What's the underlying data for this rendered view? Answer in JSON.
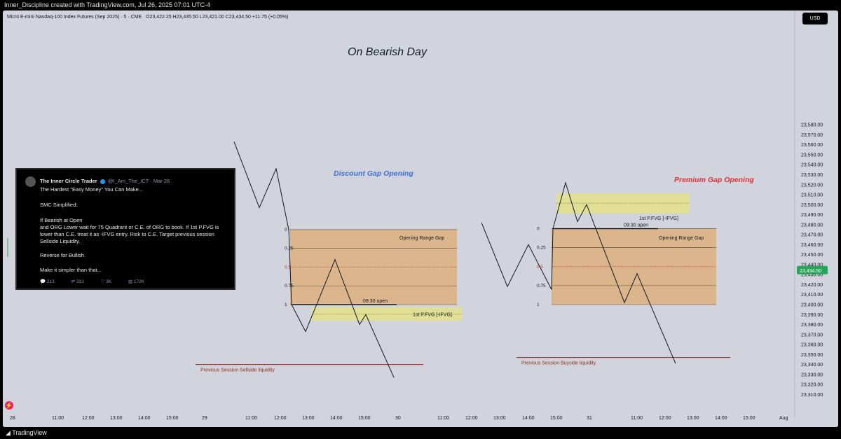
{
  "topbar": {
    "caption": "Inner_Discipline created with TradingView.com, Jul 26, 2025 07:01 UTC-4"
  },
  "symbol": {
    "name": "Micro E-mini Nasdaq-100 Index Futures (Sep 2025) · 5 · CME",
    "ohlc": "O23,422.25  H23,435.50  L23,421.00  C23,434.50  +11.75 (+0.05%)"
  },
  "currency_button": "USD",
  "branding": "TradingView",
  "colors": {
    "background": "#d1d4dc",
    "gap_box": "#e0a969",
    "pfvg_box": "#e4e08a",
    "liquidity_line": "#8b2e1f",
    "discount_title": "#3d6fd9",
    "premium_title": "#e0303a",
    "price_badge": "#26a65b"
  },
  "tweet": {
    "author": "The Inner Circle Trader",
    "handle": "@I_Am_The_ICT · Mar 26",
    "lines": [
      "The Hardest \"Easy Money\" You Can Make...",
      "SMC Simplified:",
      "If Bearish at Open",
      "and ORG Lower wait for 75 Quadrant or C.E. of ORG to book.  If 1st P.FVG is",
      "lower than C.E. treat it as -IFVG entry.  Risk to C.E.  Target previous session",
      "Sellside Liquidity.",
      "Reverse for Bullish.",
      "Make it simpler than that..."
    ],
    "stats": [
      "213",
      "313",
      "3K",
      "172K"
    ]
  },
  "chart_data": {
    "type": "line",
    "title": "On Bearish Day",
    "price_axis": {
      "ticks": [
        23580,
        23570,
        23560,
        23550,
        23540,
        23530,
        23520,
        23510,
        23500,
        23490,
        23480,
        23470,
        23460,
        23450,
        23440,
        23430,
        23420,
        23410,
        23400,
        23390,
        23380,
        23370,
        23360,
        23350,
        23340,
        23330,
        23320,
        23310
      ],
      "tick_labels": [
        "23,580.00",
        "23,570.00",
        "23,560.00",
        "23,550.00",
        "23,540.00",
        "23,530.00",
        "23,520.00",
        "23,510.00",
        "23,500.00",
        "23,490.00",
        "23,480.00",
        "23,470.00",
        "23,460.00",
        "23,450.00",
        "23,440.00",
        "23,430.00",
        "23,420.00",
        "23,410.00",
        "23,400.00",
        "23,390.00",
        "23,380.00",
        "23,370.00",
        "23,360.00",
        "23,350.00",
        "23,340.00",
        "23,330.00",
        "23,320.00",
        "23,310.00"
      ],
      "current_price": 23434.5,
      "current_label": "23,434.50"
    },
    "time_axis": {
      "labels": [
        "28",
        "11:00",
        "12:00",
        "13:00",
        "14:00",
        "15:00",
        "29",
        "11:00",
        "12:00",
        "13:00",
        "14:00",
        "15:00",
        "30",
        "11:00",
        "12:00",
        "13:00",
        "14:00",
        "15:00",
        "31",
        "11:00",
        "12:00",
        "13:00",
        "14:00",
        "15:00",
        "Aug"
      ]
    },
    "panels": [
      {
        "label": "Discount Gap Opening",
        "path": [
          [
            0,
            23563
          ],
          [
            1,
            23497
          ],
          [
            2,
            23536
          ],
          [
            3,
            23475
          ],
          [
            4,
            23400
          ],
          [
            5,
            23373
          ],
          [
            6,
            23445
          ],
          [
            7,
            23380
          ],
          [
            8,
            23390
          ],
          [
            9,
            23327
          ]
        ],
        "gap": {
          "top": 23475,
          "bottom": 23400,
          "levels": [
            "0",
            "0.25",
            "0.5",
            "0.75",
            "1"
          ],
          "ce_label": "Opening Range Gap",
          "open_label": "09:30 open"
        },
        "pfvg": {
          "top": 23393,
          "bottom": 23388,
          "label": "1st P.FVG [-IFVG]"
        },
        "liquidity": {
          "price": 23340,
          "label": "Previous Session Sellside liquidity"
        }
      },
      {
        "label": "Premium Gap Opening",
        "path": [
          [
            0,
            23482
          ],
          [
            1,
            23418
          ],
          [
            2,
            23460
          ],
          [
            3,
            23415
          ],
          [
            4,
            23476
          ],
          [
            5,
            23522
          ],
          [
            6,
            23483
          ],
          [
            7,
            23500
          ],
          [
            8,
            23402
          ],
          [
            9,
            23431
          ],
          [
            10,
            23341
          ]
        ],
        "gap": {
          "top": 23476,
          "bottom": 23400,
          "levels": [
            "0",
            "0.25",
            "0.5",
            "0.75",
            "1"
          ],
          "ce_label": "Opening Range Gap",
          "open_label": "09:30 open"
        },
        "pfvg": {
          "top": 23507,
          "bottom": 23496,
          "label": "1st P.FVG [-IFVG]"
        },
        "liquidity": {
          "price": 23347,
          "label": "Previous Session Buyside liquidity"
        }
      }
    ]
  }
}
